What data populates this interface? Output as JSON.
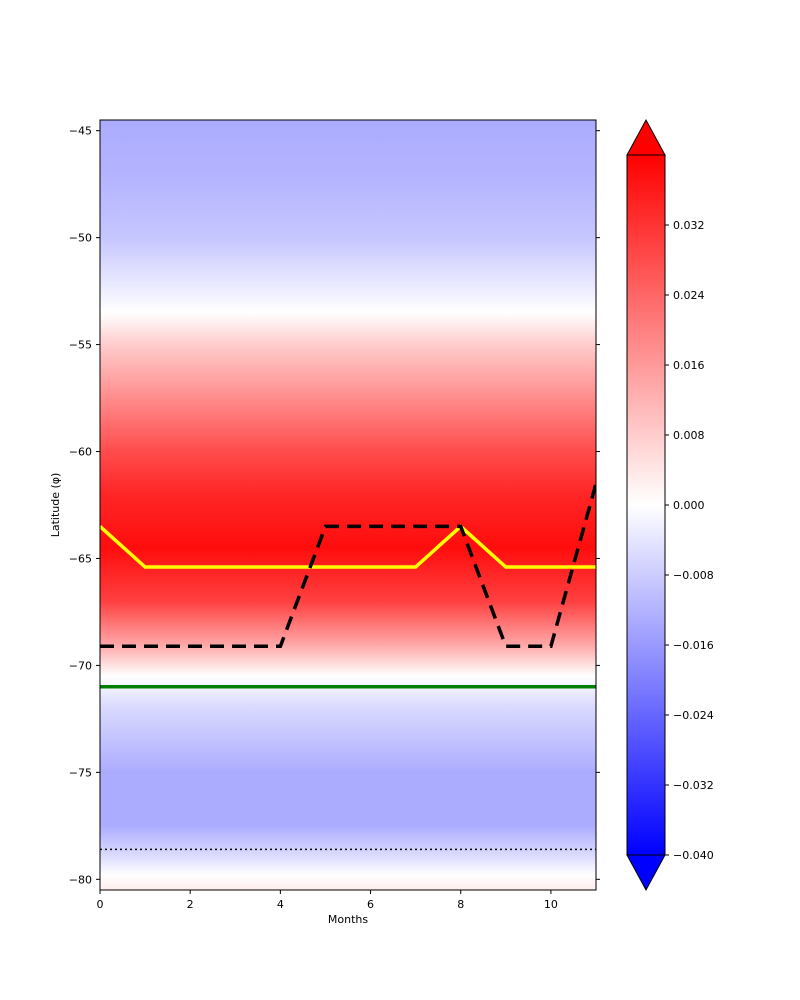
{
  "chart_data": {
    "type": "heatmap",
    "xlabel": "Months",
    "ylabel": "Latitude (φ)",
    "xlim": [
      0,
      11
    ],
    "ylim": [
      -80.5,
      -44.5
    ],
    "x_ticks": [
      0,
      2,
      4,
      6,
      8,
      10
    ],
    "y_ticks": [
      -45,
      -50,
      -55,
      -60,
      -65,
      -70,
      -75,
      -80
    ],
    "heatmap_profile": [
      {
        "lat": -44.5,
        "value": -0.013
      },
      {
        "lat": -47,
        "value": -0.012
      },
      {
        "lat": -50,
        "value": -0.009
      },
      {
        "lat": -52,
        "value": -0.004
      },
      {
        "lat": -53.5,
        "value": 0.0
      },
      {
        "lat": -55,
        "value": 0.008
      },
      {
        "lat": -57,
        "value": 0.016
      },
      {
        "lat": -60,
        "value": 0.028
      },
      {
        "lat": -62,
        "value": 0.034
      },
      {
        "lat": -64.5,
        "value": 0.038
      },
      {
        "lat": -67,
        "value": 0.03
      },
      {
        "lat": -69,
        "value": 0.014
      },
      {
        "lat": -70.5,
        "value": 0.0
      },
      {
        "lat": -72,
        "value": -0.006
      },
      {
        "lat": -75,
        "value": -0.013
      },
      {
        "lat": -77.5,
        "value": -0.013
      },
      {
        "lat": -79,
        "value": -0.005
      },
      {
        "lat": -79.8,
        "value": 0.0
      },
      {
        "lat": -80.5,
        "value": 0.003
      }
    ],
    "lines": [
      {
        "color": "#ffff00",
        "style": "solid",
        "x": [
          0,
          1,
          2,
          3,
          4,
          5,
          6,
          7,
          8,
          9,
          10,
          11
        ],
        "y": [
          -63.5,
          -65.4,
          -65.4,
          -65.4,
          -65.4,
          -65.4,
          -65.4,
          -65.4,
          -63.5,
          -65.4,
          -65.4,
          -65.4
        ]
      },
      {
        "color": "#000000",
        "style": "dashed",
        "x": [
          0,
          1,
          2,
          3,
          4,
          5,
          6,
          7,
          8,
          9,
          10,
          11
        ],
        "y": [
          -69.1,
          -69.1,
          -69.1,
          -69.1,
          -69.1,
          -63.5,
          -63.5,
          -63.5,
          -63.5,
          -69.1,
          -69.1,
          -61.5
        ]
      },
      {
        "color": "#008000",
        "style": "solid",
        "x": [
          0,
          11
        ],
        "y": [
          -71,
          -71
        ]
      },
      {
        "color": "#000000",
        "style": "dotted",
        "x": [
          0,
          11
        ],
        "y": [
          -78.6,
          -78.6
        ]
      }
    ],
    "colorbar": {
      "min": -0.04,
      "max": 0.04,
      "colormap": "bwr",
      "extend": "both",
      "ticks": [
        "−0.040",
        "−0.032",
        "−0.024",
        "−0.016",
        "−0.008",
        "0.000",
        "0.008",
        "0.016",
        "0.024",
        "0.032"
      ],
      "tick_values": [
        -0.04,
        -0.032,
        -0.024,
        -0.016,
        -0.008,
        0.0,
        0.008,
        0.016,
        0.024,
        0.032
      ]
    }
  }
}
